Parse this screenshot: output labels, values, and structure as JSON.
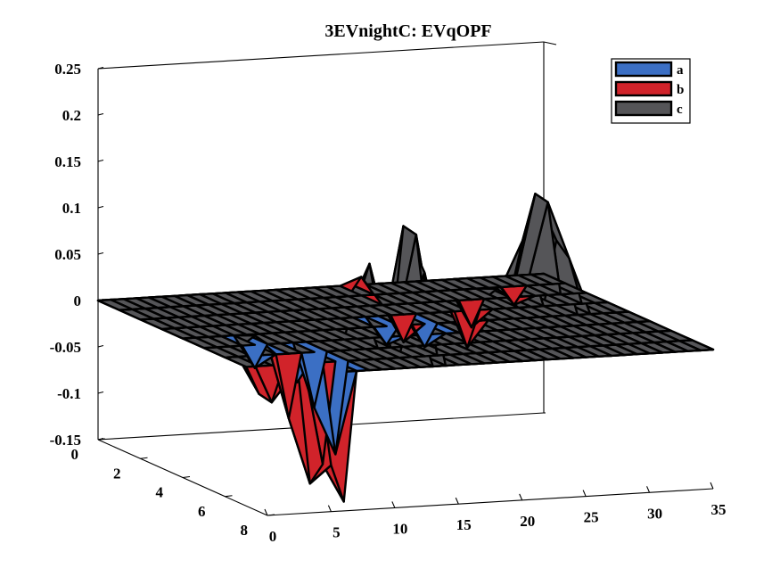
{
  "chart_data": {
    "type": "surface3d",
    "title": "3EVnightC: EVqOPF",
    "xlabel": "",
    "ylabel": "",
    "zlabel": "",
    "xlim": [
      0,
      35
    ],
    "ylim": [
      0,
      8
    ],
    "zlim": [
      -0.15,
      0.25
    ],
    "x_ticks": [
      0,
      5,
      10,
      15,
      20,
      25,
      30,
      35
    ],
    "y_ticks": [
      0,
      2,
      4,
      6,
      8
    ],
    "z_ticks": [
      -0.15,
      -0.1,
      -0.05,
      0,
      0.05,
      0.1,
      0.15,
      0.2,
      0.25
    ],
    "z_tick_labels": [
      "-0.15",
      "-0.1",
      "-0.05",
      "0",
      "0.05",
      "0.1",
      "0.15",
      "0.2",
      "0.25"
    ],
    "legend": {
      "placement": "top-right"
    },
    "series": [
      {
        "name": "a",
        "color": "#3b6fc4",
        "peaks": [
          {
            "x": 4,
            "y": 7,
            "z": -0.02
          },
          {
            "x": 4,
            "y": 5,
            "z": -0.025
          },
          {
            "x": 7,
            "y": 7,
            "z": -0.1
          },
          {
            "x": 7,
            "y": 6,
            "z": -0.06
          },
          {
            "x": 16,
            "y": 4,
            "z": -0.02
          },
          {
            "x": 19,
            "y": 4,
            "z": -0.025
          }
        ]
      },
      {
        "name": "b",
        "color": "#d1232a",
        "peaks": [
          {
            "x": 1,
            "y": 7,
            "z": -0.03
          },
          {
            "x": 2,
            "y": 7,
            "z": -0.04
          },
          {
            "x": 5,
            "y": 8,
            "z": -0.1
          },
          {
            "x": 5,
            "y": 7,
            "z": -0.13
          },
          {
            "x": 5,
            "y": 6,
            "z": -0.07
          },
          {
            "x": 6,
            "y": 8,
            "z": -0.14
          },
          {
            "x": 6,
            "y": 7,
            "z": -0.11
          },
          {
            "x": 19,
            "y": 1,
            "z": 0.02
          },
          {
            "x": 19,
            "y": 3,
            "z": -0.03
          },
          {
            "x": 24,
            "y": 3,
            "z": -0.04
          },
          {
            "x": 26,
            "y": 2,
            "z": -0.03
          },
          {
            "x": 31,
            "y": 1,
            "z": -0.02
          }
        ]
      },
      {
        "name": "c",
        "color": "#555558",
        "peaks": [
          {
            "x": 4,
            "y": 5,
            "z": 0.01
          },
          {
            "x": 12,
            "y": 5,
            "z": 0.05
          },
          {
            "x": 13,
            "y": 5,
            "z": 0.08
          },
          {
            "x": 14,
            "y": 6,
            "z": 0.13
          },
          {
            "x": 15,
            "y": 6,
            "z": 0.12
          },
          {
            "x": 13,
            "y": 7,
            "z": 0.06
          },
          {
            "x": 14,
            "y": 7,
            "z": 0.09
          },
          {
            "x": 30,
            "y": 2,
            "z": 0.06
          },
          {
            "x": 31,
            "y": 2,
            "z": 0.11
          },
          {
            "x": 32,
            "y": 2,
            "z": 0.1
          },
          {
            "x": 31,
            "y": 3,
            "z": 0.07
          },
          {
            "x": 32,
            "y": 3,
            "z": 0.05
          },
          {
            "x": 28,
            "y": 2,
            "z": 0.01
          }
        ]
      }
    ]
  }
}
